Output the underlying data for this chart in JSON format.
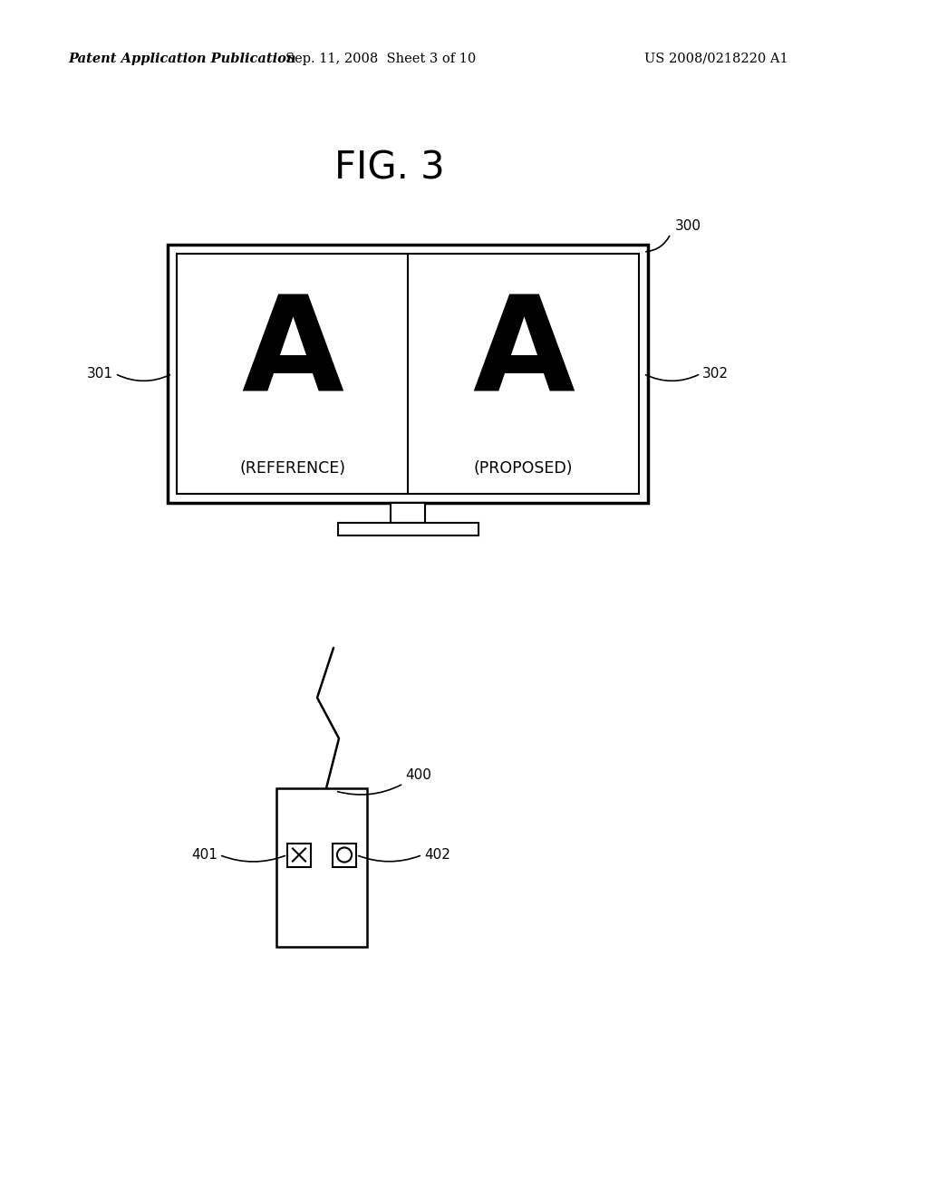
{
  "background_color": "#ffffff",
  "header_left": "Patent Application Publication",
  "header_mid": "Sep. 11, 2008  Sheet 3 of 10",
  "header_right": "US 2008/0218220 A1",
  "fig_label": "FIG. 3",
  "screen_label_left": "A",
  "screen_label_right": "A",
  "screen_caption_left": "(REFERENCE)",
  "screen_caption_right": "(PROPOSED)",
  "label_300": "300",
  "label_301": "301",
  "label_302": "302",
  "label_400": "400",
  "label_401": "401",
  "label_402": "402",
  "line_color": "#000000",
  "text_color": "#000000"
}
